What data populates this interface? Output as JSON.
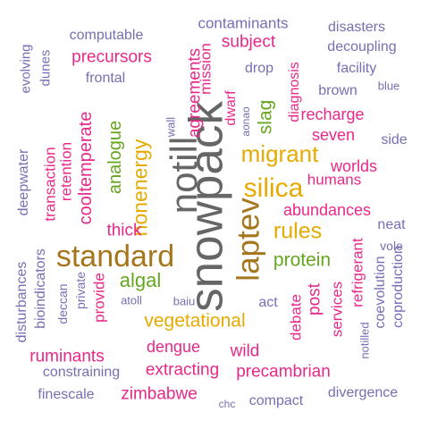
{
  "colors": {
    "gray": "#666666",
    "gold": "#a6761d",
    "yellow": "#e6ab02",
    "green": "#66a61e",
    "magenta": "#e7298a",
    "purple": "#7570b3"
  },
  "words": [
    {
      "text": "snowpack",
      "color": "gray",
      "rot": true
    },
    {
      "text": "notill",
      "color": "gray",
      "rot": true
    },
    {
      "text": "standard",
      "color": "gold",
      "rot": false
    },
    {
      "text": "laptev",
      "color": "gold",
      "rot": true
    },
    {
      "text": "silica",
      "color": "yellow",
      "rot": false
    },
    {
      "text": "migrant",
      "color": "yellow",
      "rot": false
    },
    {
      "text": "rules",
      "color": "yellow",
      "rot": false
    },
    {
      "text": "vegetational",
      "color": "yellow",
      "rot": false
    },
    {
      "text": "nonenergy",
      "color": "yellow",
      "rot": true
    },
    {
      "text": "agreements",
      "color": "magenta",
      "rot": true
    },
    {
      "text": "analogue",
      "color": "green",
      "rot": true
    },
    {
      "text": "algal",
      "color": "green",
      "rot": false
    },
    {
      "text": "protein",
      "color": "green",
      "rot": false
    },
    {
      "text": "slag",
      "color": "green",
      "rot": true
    },
    {
      "text": "precursors",
      "color": "magenta",
      "rot": false
    },
    {
      "text": "subject",
      "color": "magenta",
      "rot": false
    },
    {
      "text": "mission",
      "color": "magenta",
      "rot": true
    },
    {
      "text": "dwarf",
      "color": "magenta",
      "rot": true
    },
    {
      "text": "diagnosis",
      "color": "magenta",
      "rot": true
    },
    {
      "text": "recharge",
      "color": "magenta",
      "rot": false
    },
    {
      "text": "seven",
      "color": "magenta",
      "rot": false
    },
    {
      "text": "worlds",
      "color": "magenta",
      "rot": false
    },
    {
      "text": "humans",
      "color": "magenta",
      "rot": false
    },
    {
      "text": "abundances",
      "color": "magenta",
      "rot": false
    },
    {
      "text": "refrigerant",
      "color": "magenta",
      "rot": true
    },
    {
      "text": "post",
      "color": "magenta",
      "rot": true
    },
    {
      "text": "services",
      "color": "magenta",
      "rot": true
    },
    {
      "text": "debate",
      "color": "magenta",
      "rot": true
    },
    {
      "text": "wild",
      "color": "magenta",
      "rot": false
    },
    {
      "text": "dengue",
      "color": "magenta",
      "rot": false
    },
    {
      "text": "extracting",
      "color": "magenta",
      "rot": false
    },
    {
      "text": "precambrian",
      "color": "magenta",
      "rot": false
    },
    {
      "text": "ruminants",
      "color": "magenta",
      "rot": false
    },
    {
      "text": "zimbabwe",
      "color": "magenta",
      "rot": false
    },
    {
      "text": "provide",
      "color": "magenta",
      "rot": true
    },
    {
      "text": "thick",
      "color": "magenta",
      "rot": false
    },
    {
      "text": "cooltemperate",
      "color": "magenta",
      "rot": true
    },
    {
      "text": "retention",
      "color": "magenta",
      "rot": true
    },
    {
      "text": "transaction",
      "color": "magenta",
      "rot": true
    },
    {
      "text": "contaminants",
      "color": "purple",
      "rot": false
    },
    {
      "text": "disasters",
      "color": "purple",
      "rot": false
    },
    {
      "text": "computable",
      "color": "purple",
      "rot": false
    },
    {
      "text": "decoupling",
      "color": "purple",
      "rot": false
    },
    {
      "text": "facility",
      "color": "purple",
      "rot": false
    },
    {
      "text": "drop",
      "color": "purple",
      "rot": false
    },
    {
      "text": "brown",
      "color": "purple",
      "rot": false
    },
    {
      "text": "blue",
      "color": "purple",
      "rot": false
    },
    {
      "text": "side",
      "color": "purple",
      "rot": false
    },
    {
      "text": "frontal",
      "color": "purple",
      "rot": false
    },
    {
      "text": "wall",
      "color": "purple",
      "rot": true
    },
    {
      "text": "aonao",
      "color": "purple",
      "rot": true
    },
    {
      "text": "neat",
      "color": "purple",
      "rot": false
    },
    {
      "text": "vole",
      "color": "purple",
      "rot": false
    },
    {
      "text": "coevolution",
      "color": "purple",
      "rot": true
    },
    {
      "text": "coproduction",
      "color": "purple",
      "rot": true
    },
    {
      "text": "notilled",
      "color": "purple",
      "rot": true
    },
    {
      "text": "divergence",
      "color": "purple",
      "rot": false
    },
    {
      "text": "compact",
      "color": "purple",
      "rot": false
    },
    {
      "text": "chc",
      "color": "purple",
      "rot": false
    },
    {
      "text": "finescale",
      "color": "purple",
      "rot": false
    },
    {
      "text": "constraining",
      "color": "purple",
      "rot": false
    },
    {
      "text": "disturbances",
      "color": "purple",
      "rot": true
    },
    {
      "text": "bioindicators",
      "color": "purple",
      "rot": true
    },
    {
      "text": "deccan",
      "color": "purple",
      "rot": true
    },
    {
      "text": "private",
      "color": "purple",
      "rot": true
    },
    {
      "text": "atoll",
      "color": "purple",
      "rot": false
    },
    {
      "text": "baiu",
      "color": "purple",
      "rot": false
    },
    {
      "text": "act",
      "color": "purple",
      "rot": false
    },
    {
      "text": "deepwater",
      "color": "purple",
      "rot": true
    },
    {
      "text": "evolving",
      "color": "purple",
      "rot": true
    },
    {
      "text": "dunes",
      "color": "purple",
      "rot": true
    }
  ]
}
